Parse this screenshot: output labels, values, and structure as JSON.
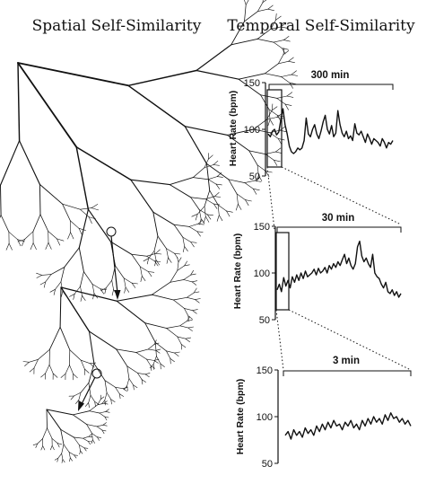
{
  "headings": {
    "spatial": "Spatial Self-Similarity",
    "temporal": "Temporal Self-Similarity"
  },
  "panels": [
    {
      "id": "p300",
      "scale_label": "300 min",
      "ylabel": "Heart Rate (bpm)",
      "ylim": [
        50,
        150
      ],
      "ticks": [
        "150",
        "100",
        "50"
      ]
    },
    {
      "id": "p30",
      "scale_label": "30 min",
      "ylabel": "Heart Rate (bpm)",
      "ylim": [
        50,
        150
      ],
      "ticks": [
        "150",
        "100",
        "50"
      ]
    },
    {
      "id": "p3",
      "scale_label": "3 min",
      "ylabel": "Heart Rate (bpm)",
      "ylim": [
        50,
        150
      ],
      "ticks": [
        "150",
        "100",
        "50"
      ]
    }
  ],
  "chart_data": [
    {
      "type": "line",
      "ylabel": "Heart Rate (bpm)",
      "ylim": [
        50,
        150
      ],
      "yticks": [
        50,
        100,
        150
      ],
      "xlim": [
        0,
        300
      ],
      "x_span_label": "300 min",
      "series": [
        {
          "values": [
            95,
            92,
            98,
            100,
            94,
            97,
            110,
            122,
            105,
            95,
            82,
            76,
            74,
            76,
            80,
            78,
            80,
            88,
            112,
            95,
            92,
            100,
            105,
            95,
            90,
            98,
            108,
            115,
            100,
            95,
            104,
            92,
            96,
            120,
            105,
            96,
            92,
            98,
            90,
            93,
            88,
            106,
            96,
            94,
            98,
            92,
            86,
            95,
            90,
            84,
            90,
            88,
            86,
            82,
            90,
            86,
            80,
            86,
            84,
            88
          ]
        }
      ]
    },
    {
      "type": "line",
      "ylabel": "Heart Rate (bpm)",
      "ylim": [
        50,
        150
      ],
      "yticks": [
        50,
        100,
        150
      ],
      "xlim": [
        0,
        30
      ],
      "x_span_label": "30 min",
      "series": [
        {
          "values": [
            82,
            88,
            80,
            95,
            86,
            92,
            84,
            96,
            90,
            98,
            92,
            100,
            94,
            102,
            96,
            98,
            100,
            104,
            98,
            105,
            100,
            102,
            106,
            100,
            108,
            104,
            110,
            106,
            112,
            108,
            114,
            120,
            110,
            116,
            108,
            104,
            110,
            128,
            134,
            118,
            112,
            116,
            110,
            106,
            120,
            100,
            96,
            94,
            88,
            84,
            90,
            80,
            78,
            82,
            76,
            80,
            74,
            78
          ]
        }
      ]
    },
    {
      "type": "line",
      "ylabel": "Heart Rate (bpm)",
      "ylim": [
        50,
        150
      ],
      "yticks": [
        50,
        100,
        150
      ],
      "xlim": [
        0,
        3
      ],
      "x_span_label": "3 min",
      "series": [
        {
          "values": [
            80,
            84,
            76,
            86,
            80,
            84,
            78,
            88,
            82,
            86,
            80,
            90,
            84,
            92,
            86,
            94,
            88,
            96,
            90,
            92,
            86,
            94,
            90,
            96,
            88,
            92,
            86,
            96,
            90,
            98,
            92,
            100,
            94,
            98,
            92,
            102,
            96,
            104,
            98,
            100,
            94,
            98,
            92,
            96,
            90
          ]
        }
      ]
    }
  ],
  "colors": {
    "ink": "#111111",
    "paper": "#ffffff"
  }
}
